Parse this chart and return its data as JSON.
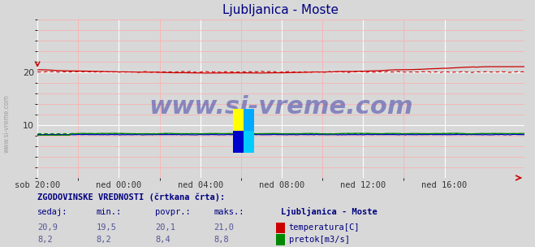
{
  "title": "Ljubljanica - Moste",
  "title_color": "#000080",
  "bg_color": "#d8d8d8",
  "plot_bg_color": "#d8d8d8",
  "grid_color_major": "#ffffff",
  "grid_color_minor": "#ffaaaa",
  "xlabel_color": "#555555",
  "watermark": "www.si-vreme.com",
  "x_labels": [
    "sob 20:00",
    "ned 00:00",
    "ned 04:00",
    "ned 08:00",
    "ned 12:00",
    "ned 16:00"
  ],
  "x_ticks_pos": [
    0,
    48,
    96,
    144,
    192,
    240
  ],
  "total_points": 288,
  "ylim": [
    0,
    30
  ],
  "yticks": [
    10,
    20
  ],
  "temp_color": "#cc0000",
  "temp_avg_color": "#cc0000",
  "flow_color": "#008800",
  "flow_avg_color": "#008800",
  "height_color": "#0000cc",
  "temp_current": 20.9,
  "temp_min": 19.5,
  "temp_avg": 20.1,
  "temp_max": 21.0,
  "flow_current": 8.2,
  "flow_min": 8.2,
  "flow_avg": 8.4,
  "flow_max": 8.8,
  "bottom_text_color": "#000080",
  "bottom_label_color": "#555599",
  "legend_title": "Ljubljanica - Moste",
  "legend_title_color": "#000080"
}
